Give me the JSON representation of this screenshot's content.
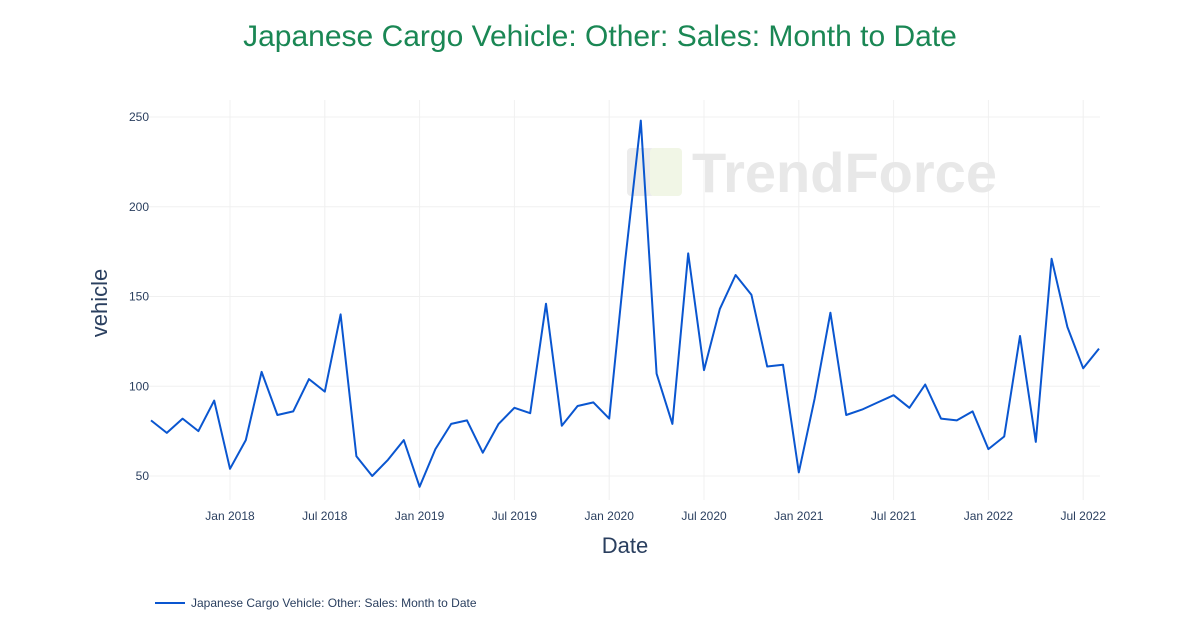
{
  "title": "Japanese Cargo Vehicle: Other: Sales: Month to Date",
  "watermark": "TrendForce",
  "legend": {
    "label": "Japanese Cargo Vehicle: Other: Sales: Month to Date",
    "color": "#0a56d0"
  },
  "colors": {
    "title": "#1a8754",
    "line": "#0a56d0",
    "grid": "#f0f0f0",
    "text": "#2a3f5f"
  },
  "chart_data": {
    "type": "line",
    "title": "Japanese Cargo Vehicle: Other: Sales: Month to Date",
    "xlabel": "Date",
    "ylabel": "vehicle",
    "ylim": [
      36,
      260
    ],
    "grid": true,
    "legend_position": "bottom-left",
    "x_tick_labels": [
      "Jan 2018",
      "Jul 2018",
      "Jan 2019",
      "Jul 2019",
      "Jan 2020",
      "Jul 2020",
      "Jan 2021",
      "Jul 2021",
      "Jan 2022",
      "Jul 2022"
    ],
    "y_tick_labels": [
      "50",
      "100",
      "150",
      "200",
      "250"
    ],
    "x": [
      "2017-08",
      "2017-09",
      "2017-10",
      "2017-11",
      "2017-12",
      "2018-01",
      "2018-02",
      "2018-03",
      "2018-04",
      "2018-05",
      "2018-06",
      "2018-07",
      "2018-08",
      "2018-09",
      "2018-10",
      "2018-11",
      "2018-12",
      "2019-01",
      "2019-02",
      "2019-03",
      "2019-04",
      "2019-05",
      "2019-06",
      "2019-07",
      "2019-08",
      "2019-09",
      "2019-10",
      "2019-11",
      "2019-12",
      "2020-01",
      "2020-02",
      "2020-03",
      "2020-04",
      "2020-05",
      "2020-06",
      "2020-07",
      "2020-08",
      "2020-09",
      "2020-10",
      "2020-11",
      "2020-12",
      "2021-01",
      "2021-02",
      "2021-03",
      "2021-04",
      "2021-05",
      "2021-06",
      "2021-07",
      "2021-08",
      "2021-09",
      "2021-10",
      "2021-11",
      "2021-12",
      "2022-01",
      "2022-02",
      "2022-03",
      "2022-04",
      "2022-05",
      "2022-06",
      "2022-07",
      "2022-08"
    ],
    "series": [
      {
        "name": "Japanese Cargo Vehicle: Other: Sales: Month to Date",
        "values": [
          81,
          74,
          82,
          75,
          92,
          54,
          70,
          108,
          84,
          86,
          104,
          97,
          140,
          61,
          50,
          59,
          70,
          44,
          65,
          79,
          81,
          63,
          79,
          88,
          85,
          146,
          78,
          89,
          91,
          82,
          169,
          248,
          107,
          79,
          174,
          109,
          143,
          162,
          151,
          111,
          112,
          52,
          93,
          141,
          84,
          87,
          91,
          95,
          88,
          101,
          82,
          81,
          86,
          65,
          72,
          128,
          69,
          171,
          133,
          110,
          121
        ]
      }
    ]
  }
}
